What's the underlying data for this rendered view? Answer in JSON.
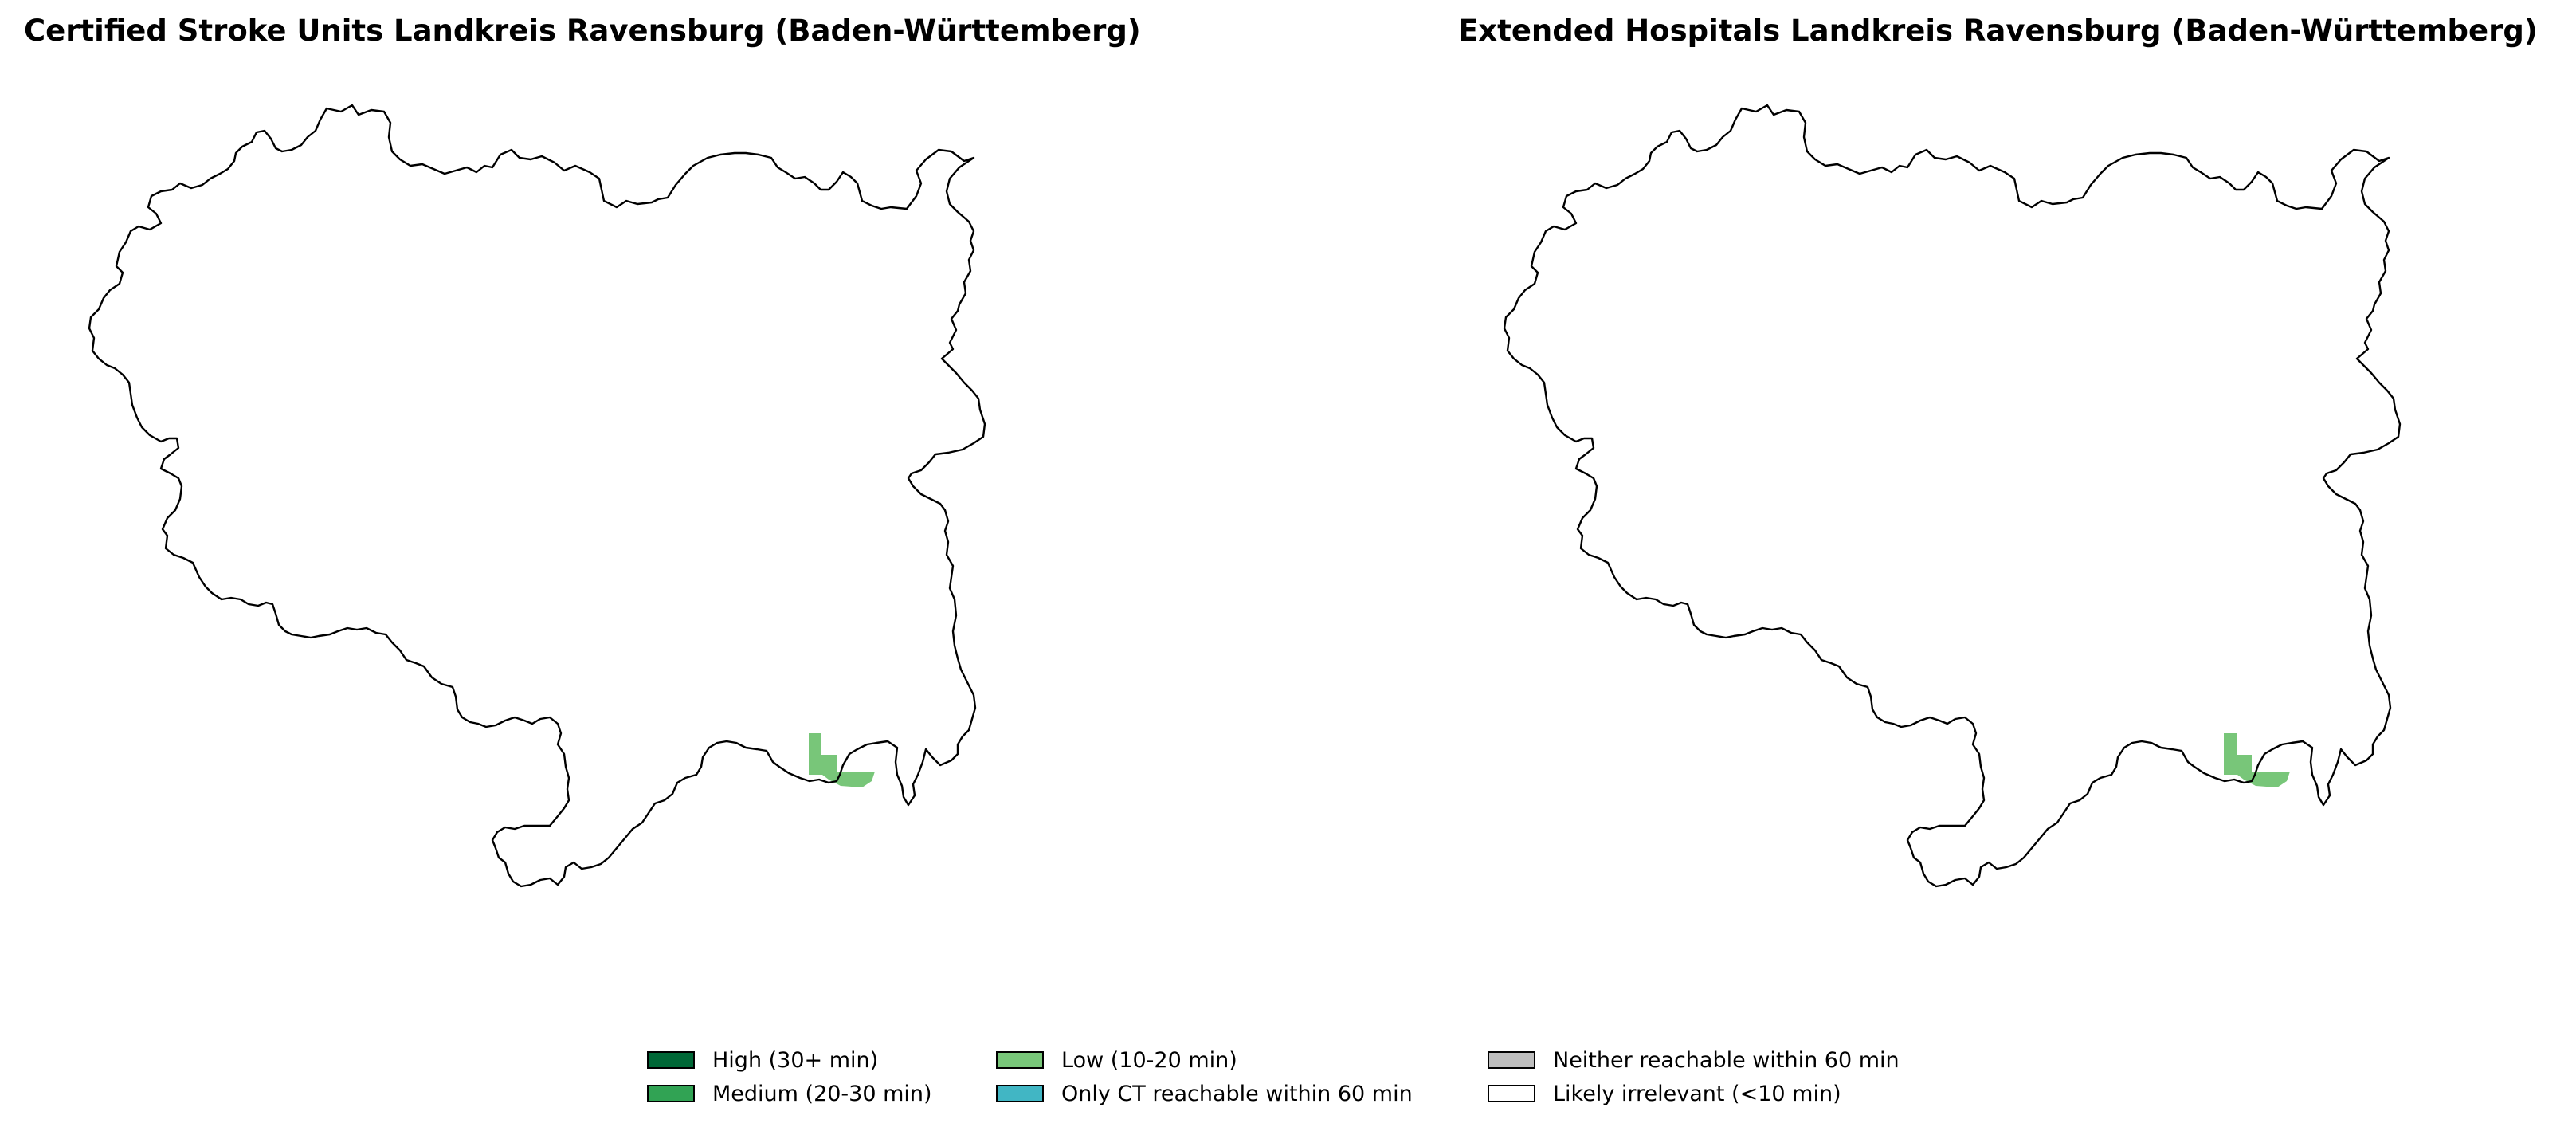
{
  "panels": [
    {
      "title": "Certified Stroke Units Landkreis Ravensburg (Baden-Württemberg)"
    },
    {
      "title": "Extended Hospitals Landkreis Ravensburg (Baden-Württemberg)"
    }
  ],
  "legend": [
    {
      "label": "High (30+ min)",
      "color": "#006837"
    },
    {
      "label": "Medium (20-30 min)",
      "color": "#31a354"
    },
    {
      "label": "Low (10-20 min)",
      "color": "#78c679"
    },
    {
      "label": "Only CT reachable within 60 min",
      "color": "#41b6c4"
    },
    {
      "label": "Neither reachable within 60 min",
      "color": "#bdbdbd"
    },
    {
      "label": "Likely irrelevant (<10 min)",
      "color": "#ffffff"
    }
  ],
  "colors": {
    "boundary": "#000000",
    "low": "#78c679"
  }
}
